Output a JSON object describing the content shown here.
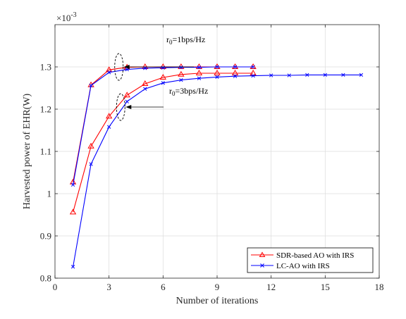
{
  "chart_data": {
    "type": "line",
    "xlabel": "Number of iterations",
    "ylabel": "Harvested power of EHR(W)",
    "y_multiplier": "×10",
    "y_multiplier_exp": "-3",
    "xlim": [
      0,
      18
    ],
    "ylim": [
      0.8,
      1.4
    ],
    "xticks": [
      0,
      3,
      6,
      9,
      12,
      15,
      18
    ],
    "yticks": [
      0.8,
      0.9,
      1,
      1.1,
      1.2,
      1.3
    ],
    "xtick_labels": [
      "0",
      "3",
      "6",
      "9",
      "12",
      "15",
      "18"
    ],
    "ytick_labels": [
      "0.8",
      "0.9",
      "1",
      "1.1",
      "1.2",
      "1.3"
    ],
    "grid": true,
    "legend_position": "bottom-right",
    "series": [
      {
        "name": "SDR-based AO with IRS",
        "color": "#ff0000",
        "marker": "triangle",
        "x": [
          1,
          2,
          3,
          4,
          5,
          6,
          7,
          8,
          9,
          10,
          11
        ],
        "y": [
          1.027,
          1.257,
          1.293,
          1.299,
          1.3,
          1.3,
          1.3,
          1.3,
          1.3,
          1.3,
          1.3
        ]
      },
      {
        "name": "LC-AO with IRS",
        "color": "#0000ff",
        "marker": "x",
        "x": [
          1,
          2,
          3,
          4,
          5,
          6,
          7,
          8,
          9,
          10,
          11
        ],
        "y": [
          1.021,
          1.256,
          1.287,
          1.294,
          1.297,
          1.298,
          1.299,
          1.299,
          1.3,
          1.3,
          1.3
        ]
      },
      {
        "name": "SDR-based AO with IRS",
        "color": "#ff0000",
        "marker": "triangle",
        "x": [
          1,
          2,
          3,
          4,
          5,
          6,
          7,
          8,
          9,
          10,
          11
        ],
        "y": [
          0.956,
          1.112,
          1.183,
          1.233,
          1.26,
          1.275,
          1.282,
          1.285,
          1.285,
          1.285,
          1.285
        ]
      },
      {
        "name": "LC-AO with IRS",
        "color": "#0000ff",
        "marker": "x",
        "x": [
          1,
          2,
          3,
          4,
          5,
          6,
          7,
          8,
          9,
          10,
          11,
          12,
          13,
          14,
          15,
          16,
          17
        ],
        "y": [
          0.827,
          1.07,
          1.158,
          1.218,
          1.248,
          1.262,
          1.269,
          1.273,
          1.276,
          1.278,
          1.279,
          1.28,
          1.28,
          1.281,
          1.281,
          1.281,
          1.281
        ]
      }
    ],
    "annotations": [
      {
        "prefix": "r",
        "sub": "0",
        "suffix": "=1bps/Hz",
        "ellipse_x": 3.55,
        "ellipse_y": 1.3
      },
      {
        "prefix": "r",
        "sub": "0",
        "suffix": "=3bps/Hz",
        "ellipse_x": 3.65,
        "ellipse_y": 1.205
      }
    ]
  }
}
